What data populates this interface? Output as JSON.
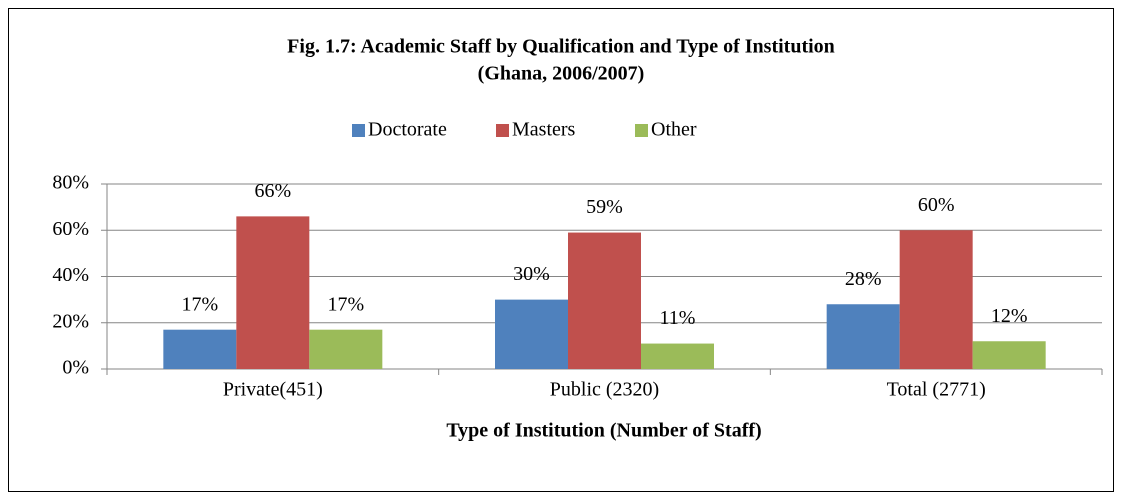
{
  "chart_data": {
    "type": "bar",
    "title": "Fig. 1.7: Academic Staff by Qualification and Type of Institution",
    "subtitle": "(Ghana, 2006/2007)",
    "x_label": "Type of Institution (Number of Staff)",
    "categories": [
      "Private(451)",
      "Public (2320)",
      "Total (2771)"
    ],
    "series": [
      {
        "name": "Doctorate",
        "color": "#4f81bd",
        "values": [
          17,
          30,
          28
        ],
        "value_labels": [
          "17%",
          "30%",
          "28%"
        ]
      },
      {
        "name": "Masters",
        "color": "#c0504d",
        "values": [
          66,
          59,
          60
        ],
        "value_labels": [
          "66%",
          "59%",
          "60%"
        ]
      },
      {
        "name": "Other",
        "color": "#9bbb59",
        "values": [
          17,
          11,
          12
        ],
        "value_labels": [
          "17%",
          "11%",
          "12%"
        ]
      }
    ],
    "ylim": [
      0,
      80
    ],
    "yticks": [
      {
        "value": 0,
        "label": "0%"
      },
      {
        "value": 20,
        "label": "20%"
      },
      {
        "value": 40,
        "label": "40%"
      },
      {
        "value": 60,
        "label": "60%"
      },
      {
        "value": 80,
        "label": "80%"
      }
    ],
    "grid": true,
    "legend": "top"
  }
}
